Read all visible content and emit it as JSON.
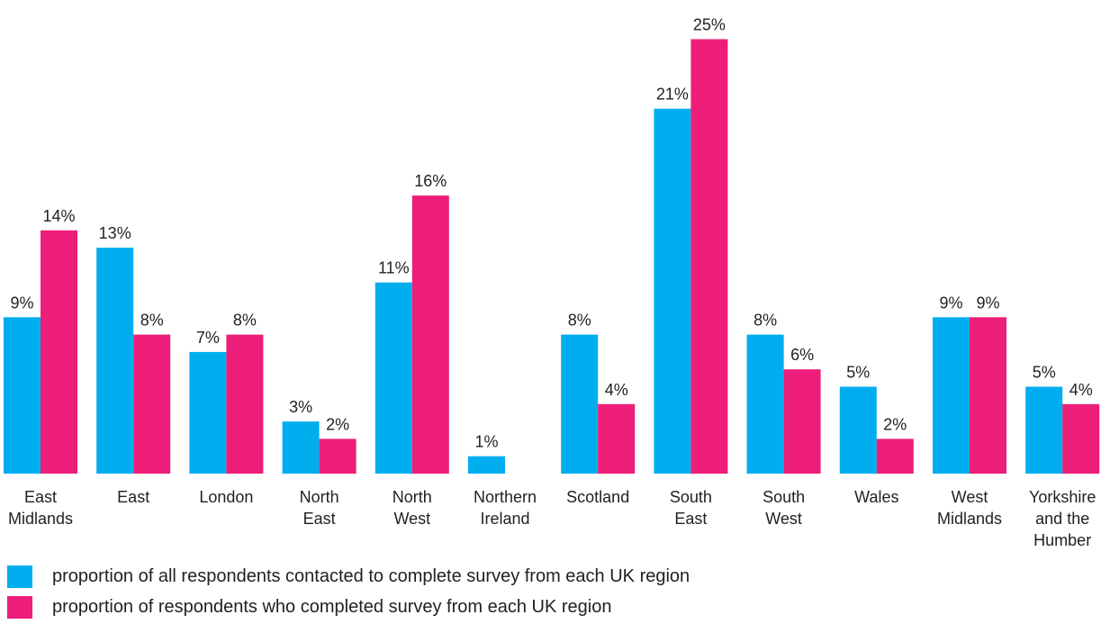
{
  "chart_data": {
    "type": "bar",
    "categories": [
      [
        "East",
        "Midlands"
      ],
      [
        "East"
      ],
      [
        "London"
      ],
      [
        "North",
        "East"
      ],
      [
        "North",
        "West"
      ],
      [
        "Northern",
        "Ireland"
      ],
      [
        "Scotland"
      ],
      [
        "South",
        "East"
      ],
      [
        "South",
        "West"
      ],
      [
        "Wales"
      ],
      [
        "West",
        "Midlands"
      ],
      [
        "Yorkshire",
        "and the",
        "Humber"
      ]
    ],
    "series": [
      {
        "name": "proportion of all respondents contacted to complete survey from each UK region",
        "color": "#00aeef",
        "values": [
          9,
          13,
          7,
          3,
          11,
          1,
          8,
          21,
          8,
          5,
          9,
          5
        ],
        "labels": [
          "9%",
          "13%",
          "7%",
          "3%",
          "11%",
          "1%",
          "8%",
          "21%",
          "8%",
          "5%",
          "9%",
          "5%"
        ]
      },
      {
        "name": "proportion of respondents who completed survey from each UK region",
        "color": "#ed1e79",
        "values": [
          14,
          8,
          8,
          2,
          16,
          null,
          4,
          25,
          6,
          2,
          9,
          4
        ],
        "labels": [
          "14%",
          "8%",
          "8%",
          "2%",
          "16%",
          "",
          "4%",
          "25%",
          "6%",
          "2%",
          "9%",
          "4%"
        ]
      }
    ],
    "title": "",
    "xlabel": "",
    "ylabel": "",
    "ylim": [
      0,
      25
    ],
    "grid": false,
    "legend": "bottom-left"
  }
}
